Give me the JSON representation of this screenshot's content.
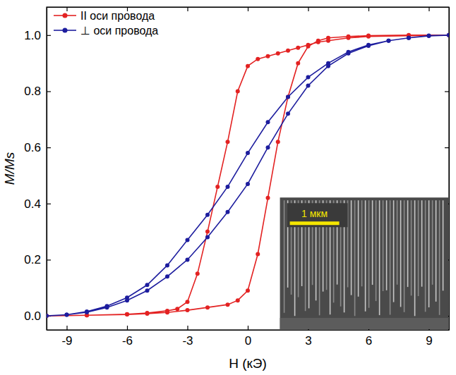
{
  "chart_data": {
    "type": "line",
    "x_label": "H (кЭ)",
    "y_label": "M/Ms",
    "annotations": [
      "1 мкм"
    ],
    "legend": "upper left",
    "xlim": [
      -10,
      10
    ],
    "ylim": [
      -0.05,
      1.1
    ],
    "xticks": [
      -9,
      -6,
      -3,
      0,
      3,
      6,
      9
    ],
    "yticks": [
      {
        "value": 0,
        "label": "0.0"
      },
      {
        "value": 0.2,
        "label": "0.2"
      },
      {
        "value": 0.4,
        "label": "0.4"
      },
      {
        "value": 0.6,
        "label": "0.6"
      },
      {
        "value": 0.8,
        "label": "0.8"
      },
      {
        "value": 1,
        "label": "1.0"
      }
    ],
    "series": [
      {
        "name": "II оси провода",
        "color": "#e32222",
        "marker": "circle",
        "line_style": "solid",
        "x": [
          10,
          8,
          6,
          5,
          4,
          3.5,
          3,
          2.5,
          2,
          1.5,
          1,
          0.5,
          0,
          -0.5,
          -1,
          -1.5,
          -2,
          -2.5,
          -3,
          -3.5,
          -4,
          -5,
          -6,
          -8,
          -10,
          -8,
          -6,
          -5,
          -4,
          -3,
          -2,
          -1,
          -0.5,
          0,
          0.5,
          1,
          1.5,
          2,
          2.5,
          3,
          3.5,
          4,
          5,
          6,
          8,
          10
        ],
        "values": [
          1.0,
          0.998,
          0.995,
          0.99,
          0.98,
          0.975,
          0.965,
          0.955,
          0.945,
          0.935,
          0.925,
          0.915,
          0.89,
          0.8,
          0.62,
          0.46,
          0.3,
          0.15,
          0.05,
          0.025,
          0.018,
          0.01,
          0.006,
          0.002,
          0.0,
          0.002,
          0.005,
          0.008,
          0.012,
          0.02,
          0.03,
          0.04,
          0.055,
          0.09,
          0.22,
          0.42,
          0.62,
          0.78,
          0.9,
          0.96,
          0.98,
          0.99,
          0.995,
          0.998,
          1.0,
          1.0
        ]
      },
      {
        "name": "⊥ оси провода",
        "color": "#1d1d9e",
        "marker": "circle",
        "line_style": "solid",
        "x": [
          10,
          9,
          8,
          7,
          6,
          5,
          4,
          3,
          2,
          1,
          0,
          -1,
          -2,
          -3,
          -4,
          -5,
          -6,
          -7,
          -8,
          -9,
          -10,
          -9,
          -8,
          -7,
          -6,
          -5,
          -4,
          -3,
          -2,
          -1,
          0,
          1,
          2,
          3,
          4,
          5,
          6,
          7,
          8,
          9,
          10
        ],
        "values": [
          1.0,
          0.998,
          0.99,
          0.98,
          0.965,
          0.94,
          0.9,
          0.85,
          0.78,
          0.69,
          0.58,
          0.46,
          0.36,
          0.27,
          0.18,
          0.11,
          0.065,
          0.035,
          0.015,
          0.004,
          0.0,
          0.004,
          0.013,
          0.03,
          0.055,
          0.09,
          0.14,
          0.2,
          0.28,
          0.37,
          0.47,
          0.6,
          0.72,
          0.82,
          0.89,
          0.935,
          0.962,
          0.98,
          0.99,
          0.997,
          1.0
        ]
      }
    ]
  }
}
